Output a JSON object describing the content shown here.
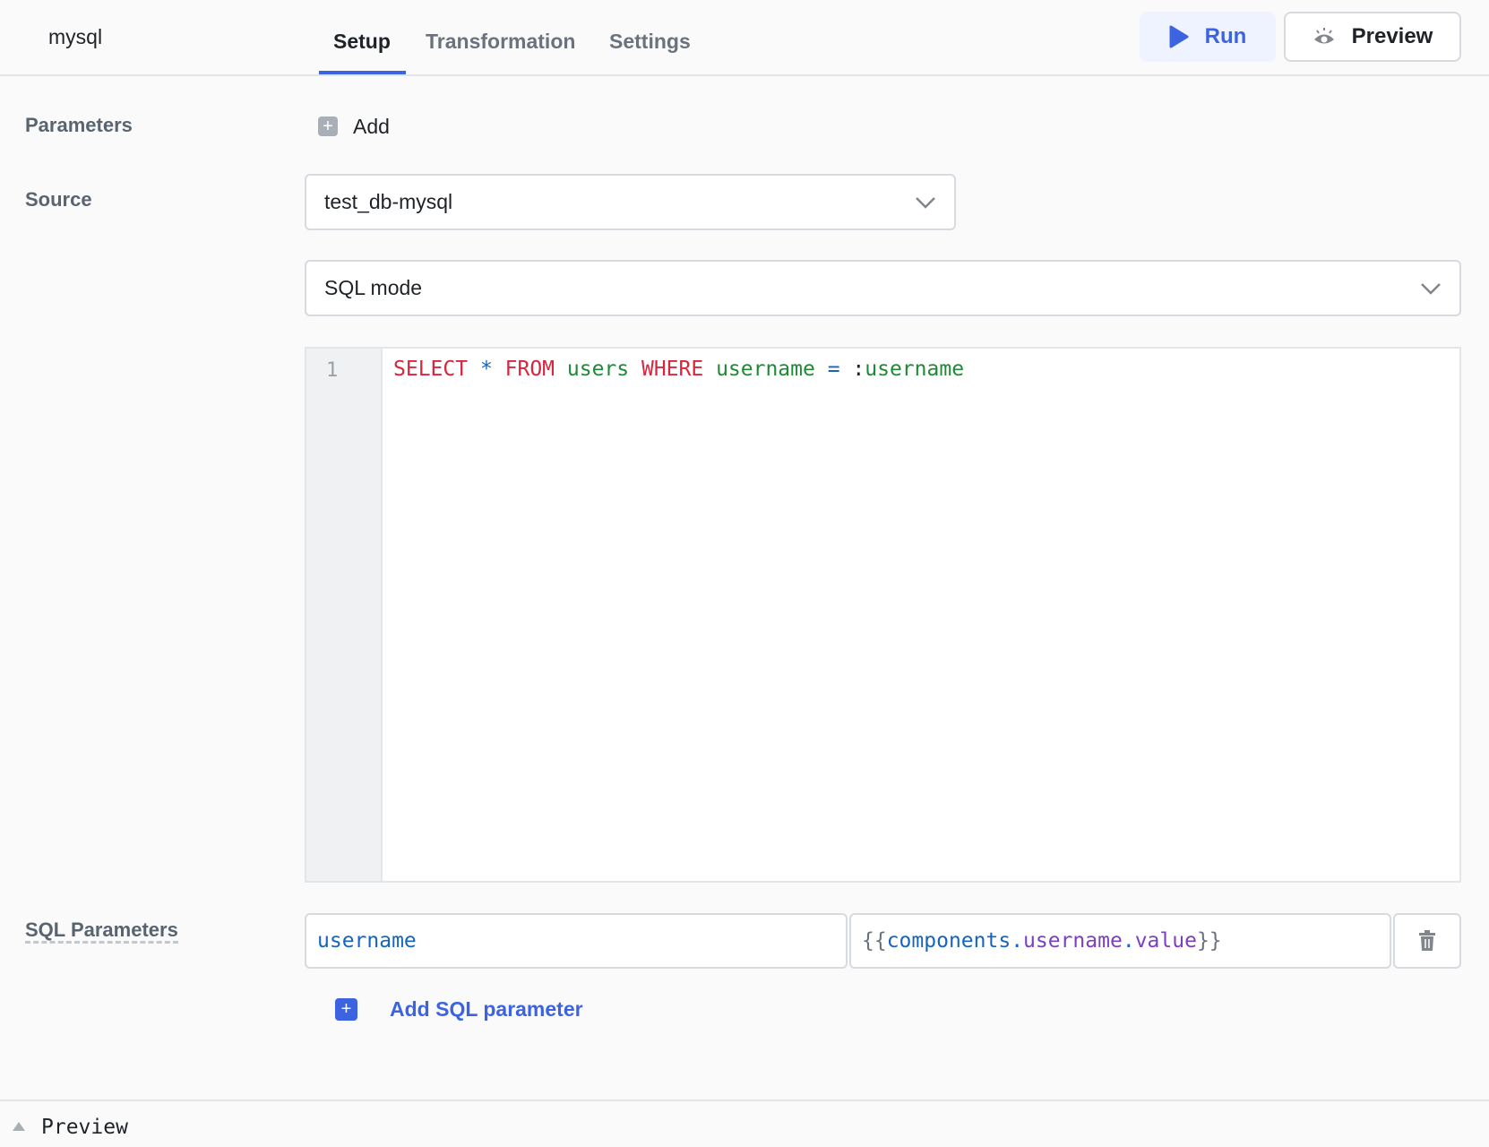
{
  "header": {
    "title": "mysql",
    "tabs": [
      {
        "label": "Setup",
        "active": true
      },
      {
        "label": "Transformation"
      },
      {
        "label": "Settings"
      }
    ],
    "run_label": "Run",
    "preview_label": "Preview"
  },
  "parameters": {
    "label": "Parameters",
    "add_label": "Add"
  },
  "source": {
    "label": "Source",
    "value": "test_db-mysql",
    "mode": "SQL mode"
  },
  "editor": {
    "line_numbers": [
      "1"
    ],
    "tokens": [
      [
        "SELECT",
        "kw"
      ],
      [
        " * ",
        "op"
      ],
      [
        "FROM",
        "kw"
      ],
      [
        " users ",
        "id"
      ],
      [
        "WHERE",
        "kw"
      ],
      [
        " username ",
        "id"
      ],
      [
        "= ",
        "op"
      ],
      [
        ":",
        "pl"
      ],
      [
        "username",
        "id"
      ]
    ]
  },
  "sql_parameters": {
    "label": "SQL Parameters",
    "rows": [
      {
        "key": "username",
        "value_parts": [
          "{{",
          "components",
          ".",
          "username",
          ".",
          "value",
          "}}"
        ]
      }
    ],
    "add_label": "Add SQL parameter"
  },
  "footer": {
    "preview_label": "Preview"
  },
  "colors": {
    "accent": "#3c64e0",
    "keyword": "#d7263d",
    "identifier": "#1e8a35"
  }
}
